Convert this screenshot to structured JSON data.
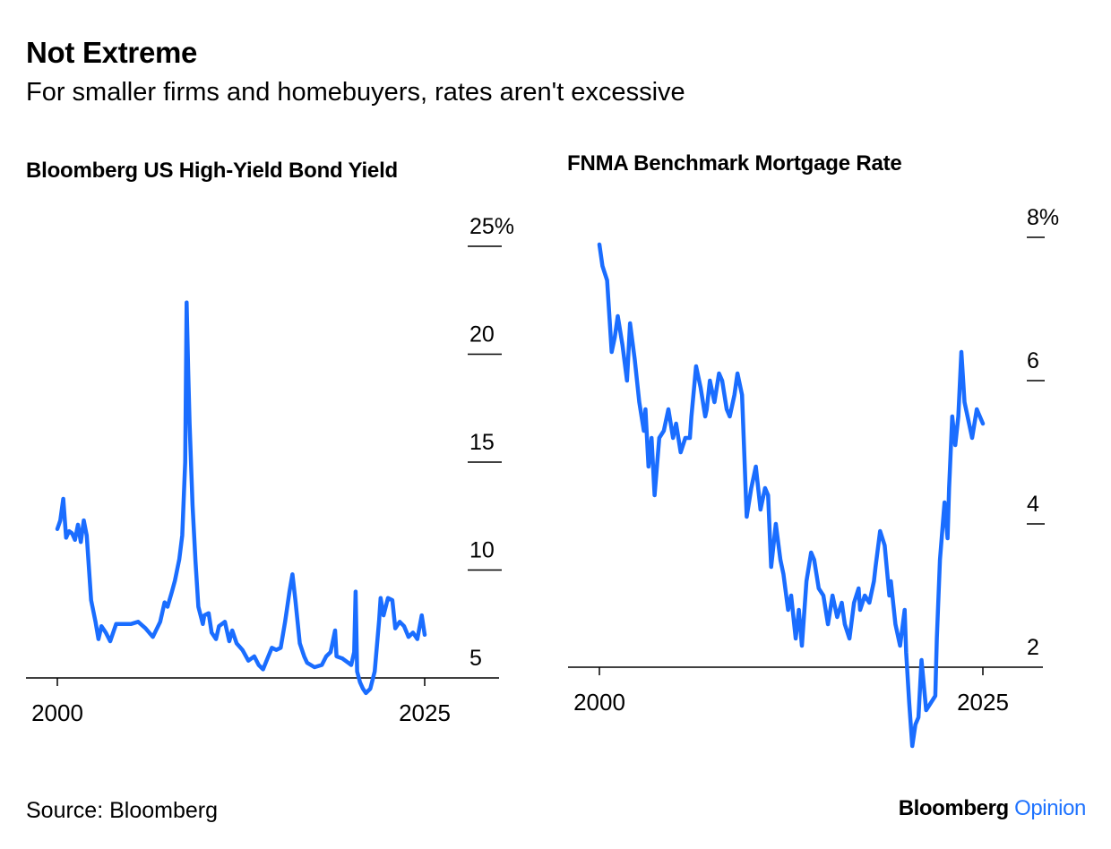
{
  "header": {
    "title": "Not Extreme",
    "subtitle": "For smaller firms and homebuyers, rates aren't excessive"
  },
  "footer": {
    "source": "Source: Bloomberg",
    "brand_primary": "Bloomberg",
    "brand_secondary": "Opinion"
  },
  "colors": {
    "line": "#1a6dff",
    "axis": "#000000",
    "brand_accent": "#1f73ff"
  },
  "chart_data": [
    {
      "type": "line",
      "title": "Bloomberg US High-Yield Bond Yield",
      "xlabel": "",
      "ylabel": "",
      "xlim": [
        2000,
        2025
      ],
      "ylim": [
        4,
        25
      ],
      "x_tick_labels": [
        "2000",
        "2025"
      ],
      "y_ticks": [
        5,
        10,
        15,
        20,
        25
      ],
      "y_tick_labels": [
        "5",
        "10",
        "15",
        "20",
        "25%"
      ],
      "series": [
        {
          "x": [
            2000.0,
            2000.2,
            2000.4,
            2000.6,
            2000.8,
            2001.0,
            2001.2,
            2001.4,
            2001.6,
            2001.8,
            2002.0,
            2002.3,
            2002.6,
            2002.8,
            2003.0,
            2003.3,
            2003.6,
            2004.0,
            2004.5,
            2005.0,
            2005.5,
            2006.0,
            2006.5,
            2007.0,
            2007.3,
            2007.5,
            2007.8,
            2008.0,
            2008.3,
            2008.5,
            2008.7,
            2008.8,
            2008.9,
            2009.0,
            2009.2,
            2009.4,
            2009.6,
            2009.9,
            2010.0,
            2010.3,
            2010.5,
            2010.8,
            2011.0,
            2011.4,
            2011.7,
            2011.9,
            2012.2,
            2012.6,
            2013.0,
            2013.4,
            2013.7,
            2014.0,
            2014.3,
            2014.6,
            2014.9,
            2015.2,
            2015.5,
            2015.8,
            2016.0,
            2016.2,
            2016.5,
            2016.8,
            2017.0,
            2017.5,
            2018.0,
            2018.3,
            2018.6,
            2018.9,
            2019.0,
            2019.4,
            2019.8,
            2020.0,
            2020.2,
            2020.3,
            2020.4,
            2020.6,
            2020.8,
            2021.0,
            2021.3,
            2021.6,
            2021.9,
            2022.0,
            2022.2,
            2022.5,
            2022.8,
            2023.0,
            2023.3,
            2023.6,
            2023.9,
            2024.2,
            2024.5,
            2024.8,
            2025.0
          ],
          "values": [
            11.9,
            12.3,
            13.3,
            11.5,
            11.8,
            11.7,
            11.4,
            12.1,
            11.3,
            12.3,
            11.6,
            8.6,
            7.6,
            6.8,
            7.4,
            7.1,
            6.7,
            7.5,
            7.5,
            7.5,
            7.6,
            7.3,
            6.9,
            7.6,
            8.5,
            8.3,
            9.0,
            9.5,
            10.5,
            11.6,
            15.0,
            22.4,
            19.3,
            16.8,
            13.0,
            10.4,
            8.3,
            7.5,
            7.9,
            8.0,
            7.1,
            6.8,
            7.4,
            7.6,
            6.7,
            7.2,
            6.6,
            6.3,
            5.8,
            6.0,
            5.6,
            5.4,
            5.9,
            6.4,
            6.3,
            6.4,
            7.6,
            9.0,
            9.8,
            8.6,
            6.6,
            6.0,
            5.7,
            5.5,
            5.6,
            6.0,
            6.2,
            7.2,
            6.0,
            5.9,
            5.7,
            5.6,
            6.2,
            9.0,
            5.3,
            4.8,
            4.5,
            4.3,
            4.5,
            5.3,
            7.7,
            8.7,
            7.9,
            8.7,
            8.6,
            7.3,
            7.6,
            7.4,
            6.9,
            7.1,
            6.8,
            7.9,
            7.0
          ]
        }
      ]
    },
    {
      "type": "line",
      "title": "FNMA Benchmark Mortgage Rate",
      "xlabel": "",
      "ylabel": "",
      "xlim": [
        2000,
        2025
      ],
      "ylim": [
        1.2,
        8.3
      ],
      "x_tick_labels": [
        "2000",
        "2025"
      ],
      "y_ticks": [
        2,
        4,
        6,
        8
      ],
      "y_tick_labels": [
        "2",
        "4",
        "6",
        "8%"
      ],
      "series": [
        {
          "x": [
            2000.0,
            2000.2,
            2000.5,
            2000.8,
            2001.0,
            2001.2,
            2001.5,
            2001.8,
            2002.0,
            2002.3,
            2002.6,
            2002.9,
            2003.0,
            2003.2,
            2003.4,
            2003.6,
            2003.9,
            2004.2,
            2004.5,
            2004.8,
            2005.0,
            2005.3,
            2005.6,
            2005.9,
            2006.0,
            2006.3,
            2006.6,
            2006.9,
            2007.0,
            2007.2,
            2007.5,
            2007.8,
            2008.0,
            2008.3,
            2008.5,
            2008.8,
            2009.0,
            2009.3,
            2009.6,
            2009.9,
            2010.2,
            2010.5,
            2010.8,
            2011.0,
            2011.2,
            2011.5,
            2011.8,
            2012.0,
            2012.3,
            2012.5,
            2012.8,
            2013.0,
            2013.2,
            2013.5,
            2013.8,
            2014.0,
            2014.3,
            2014.6,
            2014.9,
            2015.2,
            2015.5,
            2015.8,
            2016.0,
            2016.3,
            2016.6,
            2016.9,
            2017.0,
            2017.3,
            2017.6,
            2017.9,
            2018.0,
            2018.3,
            2018.6,
            2018.9,
            2019.0,
            2019.3,
            2019.6,
            2019.9,
            2020.0,
            2020.2,
            2020.4,
            2020.6,
            2020.8,
            2021.0,
            2021.3,
            2021.6,
            2021.9,
            2022.0,
            2022.2,
            2022.5,
            2022.7,
            2022.8,
            2023.0,
            2023.2,
            2023.4,
            2023.6,
            2023.8,
            2024.0,
            2024.3,
            2024.6,
            2024.8,
            2025.0
          ],
          "values": [
            7.9,
            7.6,
            7.4,
            6.4,
            6.6,
            6.9,
            6.5,
            6.0,
            6.8,
            6.3,
            5.7,
            5.3,
            5.6,
            4.8,
            5.2,
            4.4,
            5.2,
            5.3,
            5.6,
            5.2,
            5.4,
            5.0,
            5.2,
            5.2,
            5.5,
            6.2,
            5.9,
            5.5,
            5.6,
            6.0,
            5.7,
            6.1,
            6.0,
            5.6,
            5.5,
            5.8,
            6.1,
            5.8,
            4.1,
            4.5,
            4.8,
            4.2,
            4.5,
            4.4,
            3.4,
            4.0,
            3.5,
            3.3,
            2.8,
            3.0,
            2.4,
            2.8,
            2.3,
            3.2,
            3.6,
            3.5,
            3.1,
            3.0,
            2.6,
            3.0,
            2.7,
            2.9,
            2.6,
            2.4,
            2.9,
            3.1,
            2.8,
            3.0,
            2.9,
            3.2,
            3.4,
            3.9,
            3.7,
            3.0,
            3.2,
            2.6,
            2.3,
            2.8,
            2.2,
            1.5,
            0.9,
            1.2,
            1.3,
            2.1,
            1.4,
            1.5,
            1.6,
            2.4,
            3.5,
            4.3,
            3.8,
            4.5,
            5.5,
            5.1,
            5.5,
            6.4,
            5.7,
            5.5,
            5.2,
            5.6,
            5.5,
            5.4
          ]
        }
      ]
    }
  ]
}
